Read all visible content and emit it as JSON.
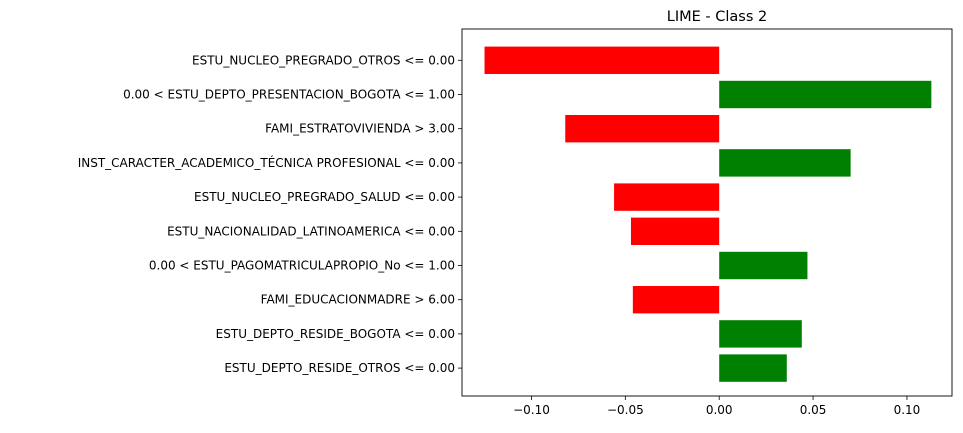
{
  "chart_data": {
    "type": "bar",
    "orientation": "horizontal",
    "title": "LIME - Class 2",
    "xlabel": "",
    "ylabel": "",
    "xlim": [
      -0.137,
      0.124
    ],
    "grid": false,
    "legend": "none",
    "positive_color": "#008000",
    "negative_color": "#ff0000",
    "categories": [
      "ESTU_NUCLEO_PREGRADO_OTROS <= 0.00",
      "0.00 < ESTU_DEPTO_PRESENTACION_BOGOTA <= 1.00",
      "FAMI_ESTRATOVIVIENDA > 3.00",
      "INST_CARACTER_ACADEMICO_TÉCNICA PROFESIONAL <= 0.00",
      "ESTU_NUCLEO_PREGRADO_SALUD <= 0.00",
      "ESTU_NACIONALIDAD_LATINOAMERICA <= 0.00",
      "0.00 < ESTU_PAGOMATRICULAPROPIO_No <= 1.00",
      "FAMI_EDUCACIONMADRE > 6.00",
      "ESTU_DEPTO_RESIDE_BOGOTA <= 0.00",
      "ESTU_DEPTO_RESIDE_OTROS <= 0.00"
    ],
    "values": [
      -0.125,
      0.113,
      -0.082,
      0.07,
      -0.056,
      -0.047,
      0.047,
      -0.046,
      0.044,
      0.036
    ],
    "xticks": [
      -0.1,
      -0.05,
      0.0,
      0.05,
      0.1
    ],
    "xtick_labels": [
      "−0.10",
      "−0.05",
      "0.00",
      "0.05",
      "0.10"
    ]
  }
}
